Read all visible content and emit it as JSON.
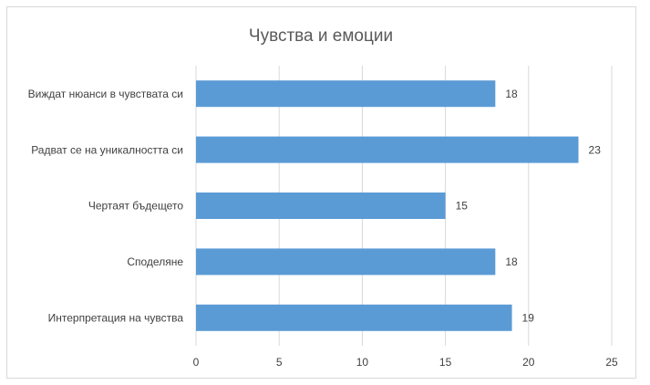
{
  "chart_data": {
    "type": "bar",
    "orientation": "horizontal",
    "title": "Чувства и емоции",
    "categories": [
      "Виждат нюанси в чувствата си",
      "Радват се на уникалността си",
      "Чертаят бъдещето",
      "Споделяне",
      "Интерпретация на чувства"
    ],
    "values": [
      18,
      23,
      15,
      18,
      19
    ],
    "color": "#5b9bd5",
    "xlim": [
      0,
      25
    ],
    "xticks": [
      0,
      5,
      10,
      15,
      20,
      25
    ],
    "grid": true
  }
}
